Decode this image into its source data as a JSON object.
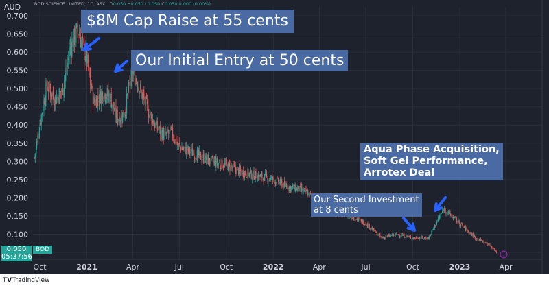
{
  "header": {
    "symbol": "BOD SCIENCE LIMITED, 1D, ASX",
    "open_label": "O",
    "open_value": "0.050",
    "high_label": "H",
    "high_value": "0.050",
    "low_label": "L",
    "low_value": "0.050",
    "close_label": "C",
    "close_value": "0.050",
    "change": "0.000 (0.00%)"
  },
  "axis_unit": "AUD",
  "price_tag": {
    "price": "0.050",
    "countdown": "05:37:56"
  },
  "ticker": "BOD",
  "annotations": {
    "cap_raise": "$8M Cap Raise at 55 cents",
    "initial_entry": "Our Initial Entry at 50 cents",
    "aqua_phase": "Aqua Phase Acquisition,\nSoft Gel Performance,\nArrotex Deal",
    "second_investment": "Our Second Investment\nat 8 cents"
  },
  "footer": {
    "logo": "TV",
    "brand": "TradingView"
  },
  "colors": {
    "background": "#1e222d",
    "up": "#26a69a",
    "down": "#ef5350",
    "annotation": "#4a6aa3",
    "arrow": "#2962ff"
  },
  "chart_data": {
    "type": "line",
    "style": "candlestick",
    "title": "BOD SCIENCE LIMITED, 1D, ASX",
    "ylabel": "AUD",
    "ylim": [
      0.03,
      0.72
    ],
    "y_ticks": [
      "0.700",
      "0.650",
      "0.600",
      "0.550",
      "0.500",
      "0.450",
      "0.400",
      "0.350",
      "0.300",
      "0.250",
      "0.200",
      "0.150",
      "0.100",
      "0.050"
    ],
    "x_ticks": [
      "Oct",
      "2021",
      "Apr",
      "Jul",
      "Oct",
      "2022",
      "Apr",
      "Jul",
      "Oct",
      "2023",
      "Apr",
      "J"
    ],
    "x_ticks_bold": [
      "2021",
      "2022",
      "2023"
    ],
    "grid": true,
    "series": [
      {
        "x": [
          "2020-09-21",
          "2020-10-01",
          "2020-10-15",
          "2020-11-01",
          "2020-11-15",
          "2020-12-01",
          "2020-12-15",
          "2021-01-01",
          "2021-01-15",
          "2021-02-01",
          "2021-02-15",
          "2021-03-01",
          "2021-03-15",
          "2021-04-01",
          "2021-04-15",
          "2021-05-01",
          "2021-05-15",
          "2021-06-01",
          "2021-06-15",
          "2021-07-01",
          "2021-08-01",
          "2021-09-01",
          "2021-10-01",
          "2021-11-01",
          "2021-12-01",
          "2022-01-01",
          "2022-02-01",
          "2022-03-01",
          "2022-04-01",
          "2022-05-01",
          "2022-06-01",
          "2022-07-01",
          "2022-08-01",
          "2022-09-01",
          "2022-10-01",
          "2022-11-01",
          "2022-12-01",
          "2023-01-01",
          "2023-02-01",
          "2023-03-01",
          "2023-03-15"
        ],
        "close": [
          0.31,
          0.4,
          0.51,
          0.47,
          0.5,
          0.62,
          0.66,
          0.58,
          0.46,
          0.49,
          0.48,
          0.42,
          0.43,
          0.55,
          0.5,
          0.44,
          0.4,
          0.37,
          0.38,
          0.34,
          0.32,
          0.3,
          0.29,
          0.27,
          0.26,
          0.25,
          0.23,
          0.22,
          0.19,
          0.16,
          0.15,
          0.13,
          0.09,
          0.1,
          0.09,
          0.09,
          0.17,
          0.13,
          0.09,
          0.07,
          0.05
        ]
      }
    ]
  }
}
